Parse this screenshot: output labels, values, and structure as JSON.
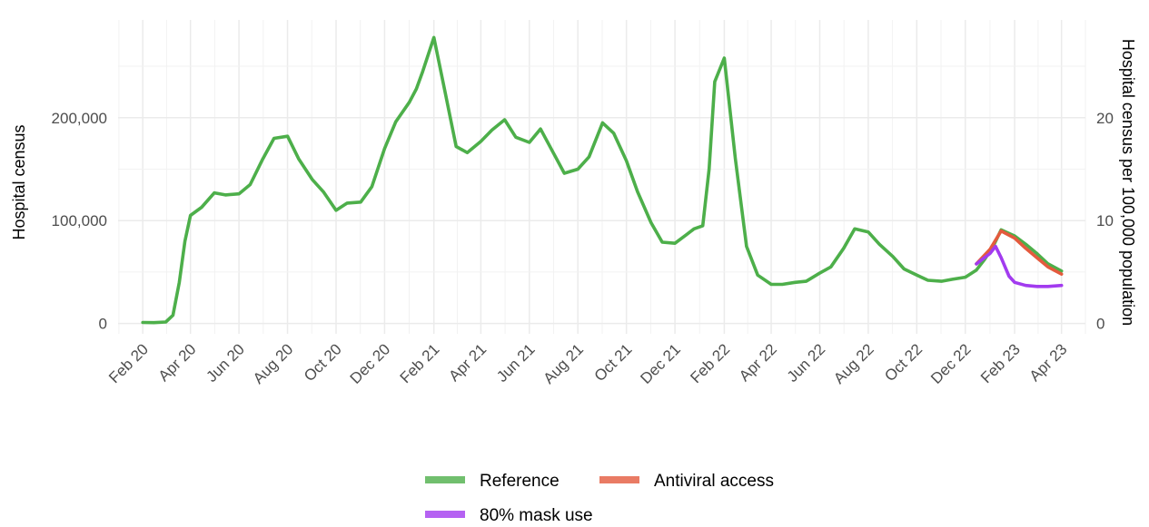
{
  "chart_data": {
    "type": "line",
    "ylabel_left": "Hospital census",
    "ylabel_right": "Hospital census per 100,000 population",
    "x_ticks": [
      "Feb 20",
      "Apr 20",
      "Jun 20",
      "Aug 20",
      "Oct 20",
      "Dec 20",
      "Feb 21",
      "Apr 21",
      "Jun 21",
      "Aug 21",
      "Oct 21",
      "Dec 21",
      "Feb 22",
      "Apr 22",
      "Jun 22",
      "Aug 22",
      "Oct 22",
      "Dec 22",
      "Feb 23",
      "Apr 23"
    ],
    "y_ticks_left": [
      "0",
      "100,000",
      "200,000"
    ],
    "y_ticks_right": [
      "0",
      "10",
      "20"
    ],
    "ylim": [
      -10000,
      295000
    ],
    "y_right_scale_per_unit": 10000,
    "grid": true,
    "legend_position": "bottom",
    "series": [
      {
        "name": "Reference",
        "color": "#4daf4a",
        "x": [
          "2020-02-01",
          "2020-02-15",
          "2020-03-01",
          "2020-03-10",
          "2020-03-18",
          "2020-03-25",
          "2020-04-01",
          "2020-04-15",
          "2020-05-01",
          "2020-05-15",
          "2020-06-01",
          "2020-06-15",
          "2020-07-01",
          "2020-07-15",
          "2020-08-01",
          "2020-08-15",
          "2020-09-01",
          "2020-09-15",
          "2020-10-01",
          "2020-10-15",
          "2020-11-01",
          "2020-11-15",
          "2020-12-01",
          "2020-12-15",
          "2021-01-01",
          "2021-01-10",
          "2021-01-18",
          "2021-02-01",
          "2021-02-15",
          "2021-03-01",
          "2021-03-15",
          "2021-04-01",
          "2021-04-15",
          "2021-05-01",
          "2021-05-15",
          "2021-06-01",
          "2021-06-15",
          "2021-07-01",
          "2021-07-15",
          "2021-08-01",
          "2021-08-15",
          "2021-09-01",
          "2021-09-15",
          "2021-10-01",
          "2021-10-15",
          "2021-11-01",
          "2021-11-15",
          "2021-12-01",
          "2021-12-15",
          "2021-12-25",
          "2022-01-05",
          "2022-01-13",
          "2022-01-20",
          "2022-02-01",
          "2022-02-15",
          "2022-03-01",
          "2022-03-15",
          "2022-04-01",
          "2022-04-15",
          "2022-05-01",
          "2022-05-15",
          "2022-06-01",
          "2022-06-15",
          "2022-07-01",
          "2022-07-15",
          "2022-08-01",
          "2022-08-15",
          "2022-09-01",
          "2022-09-15",
          "2022-10-01",
          "2022-10-15",
          "2022-11-01",
          "2022-11-15",
          "2022-12-01",
          "2022-12-15",
          "2022-12-25",
          "2023-01-05",
          "2023-01-15",
          "2023-02-01",
          "2023-02-15",
          "2023-03-01",
          "2023-03-15",
          "2023-04-01"
        ],
        "y": [
          1000,
          800,
          1500,
          8000,
          40000,
          80000,
          105000,
          113000,
          127000,
          125000,
          126000,
          135000,
          160000,
          180000,
          182000,
          160000,
          140000,
          128000,
          110000,
          117000,
          118000,
          133000,
          170000,
          196000,
          215000,
          228000,
          245000,
          278000,
          225000,
          172000,
          166000,
          177000,
          188000,
          198000,
          181000,
          176000,
          189000,
          166000,
          146000,
          150000,
          162000,
          195000,
          185000,
          158000,
          128000,
          98000,
          79000,
          78000,
          86000,
          92000,
          95000,
          150000,
          235000,
          258000,
          160000,
          75000,
          47000,
          38000,
          38000,
          40000,
          41000,
          49000,
          55000,
          73000,
          92000,
          89000,
          77000,
          65000,
          53000,
          47000,
          42000,
          41000,
          43000,
          45000,
          52000,
          62000,
          75000,
          91000,
          85000,
          77000,
          68000,
          58000,
          51000
        ]
      },
      {
        "name": "Antiviral access",
        "color": "#e45a3d",
        "x": [
          "2022-12-15",
          "2023-01-01",
          "2023-01-15",
          "2023-02-01",
          "2023-02-15",
          "2023-03-01",
          "2023-03-15",
          "2023-04-01"
        ],
        "y": [
          58000,
          72000,
          90000,
          83000,
          73000,
          64000,
          55000,
          48000
        ]
      },
      {
        "name": "80% mask use",
        "color": "#a23bef",
        "x": [
          "2022-12-15",
          "2023-01-01",
          "2023-01-08",
          "2023-01-15",
          "2023-01-25",
          "2023-02-01",
          "2023-02-15",
          "2023-03-01",
          "2023-03-15",
          "2023-04-01"
        ],
        "y": [
          58000,
          68000,
          75000,
          64000,
          46000,
          40000,
          37000,
          36000,
          36000,
          37000
        ]
      }
    ]
  },
  "legend": {
    "reference_label": "Reference",
    "antiviral_label": "Antiviral access",
    "mask_label": "80% mask use"
  }
}
